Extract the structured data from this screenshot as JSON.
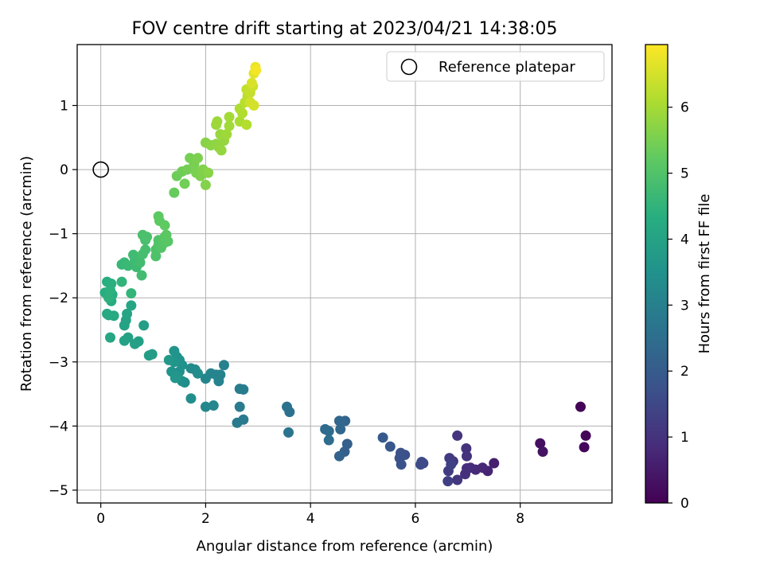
{
  "chart_data": {
    "type": "scatter",
    "title": "FOV centre drift starting at 2023/04/21 14:38:05",
    "xlabel": "Angular distance from reference (arcmin)",
    "ylabel": "Rotation from reference (arcmin)",
    "xlim": [
      -0.45,
      9.75
    ],
    "ylim": [
      -5.2,
      1.95
    ],
    "xticks": [
      0,
      2,
      4,
      6,
      8
    ],
    "yticks": [
      -5,
      -4,
      -3,
      -2,
      -1,
      0,
      1
    ],
    "grid": true,
    "legend": {
      "label": "Reference platepar",
      "placement": "top-right"
    },
    "reference_point": {
      "x": 0,
      "y": 0
    },
    "colorbar": {
      "label": "Hours from first FF file",
      "range": [
        0,
        6.95
      ],
      "ticks": [
        0,
        1,
        2,
        3,
        4,
        5,
        6
      ],
      "colormap": "viridis"
    },
    "points": [
      {
        "x": 9.15,
        "y": -3.7,
        "h": 0.05
      },
      {
        "x": 9.25,
        "y": -4.15,
        "h": 0.1
      },
      {
        "x": 9.22,
        "y": -4.33,
        "h": 0.15
      },
      {
        "x": 8.38,
        "y": -4.27,
        "h": 0.3
      },
      {
        "x": 8.43,
        "y": -4.4,
        "h": 0.35
      },
      {
        "x": 7.5,
        "y": -4.58,
        "h": 0.6
      },
      {
        "x": 7.38,
        "y": -4.7,
        "h": 0.7
      },
      {
        "x": 7.28,
        "y": -4.65,
        "h": 0.75
      },
      {
        "x": 7.15,
        "y": -4.68,
        "h": 0.8
      },
      {
        "x": 7.05,
        "y": -4.65,
        "h": 0.85
      },
      {
        "x": 6.98,
        "y": -4.66,
        "h": 0.9
      },
      {
        "x": 6.95,
        "y": -4.75,
        "h": 0.95
      },
      {
        "x": 6.97,
        "y": -4.35,
        "h": 1.0
      },
      {
        "x": 6.98,
        "y": -4.47,
        "h": 1.02
      },
      {
        "x": 6.8,
        "y": -4.15,
        "h": 1.05
      },
      {
        "x": 6.8,
        "y": -4.84,
        "h": 1.1
      },
      {
        "x": 6.72,
        "y": -4.55,
        "h": 1.15
      },
      {
        "x": 6.65,
        "y": -4.5,
        "h": 1.2
      },
      {
        "x": 6.63,
        "y": -4.7,
        "h": 1.25
      },
      {
        "x": 6.62,
        "y": -4.86,
        "h": 1.3
      },
      {
        "x": 6.68,
        "y": -4.6,
        "h": 1.35
      },
      {
        "x": 6.15,
        "y": -4.58,
        "h": 1.5
      },
      {
        "x": 6.12,
        "y": -4.56,
        "h": 1.55
      },
      {
        "x": 6.1,
        "y": -4.6,
        "h": 1.6
      },
      {
        "x": 5.8,
        "y": -4.45,
        "h": 1.7
      },
      {
        "x": 5.72,
        "y": -4.42,
        "h": 1.75
      },
      {
        "x": 5.7,
        "y": -4.5,
        "h": 1.78
      },
      {
        "x": 5.73,
        "y": -4.6,
        "h": 1.8
      },
      {
        "x": 5.52,
        "y": -4.32,
        "h": 1.9
      },
      {
        "x": 5.38,
        "y": -4.18,
        "h": 1.95
      },
      {
        "x": 4.7,
        "y": -4.28,
        "h": 2.1
      },
      {
        "x": 4.65,
        "y": -4.4,
        "h": 2.15
      },
      {
        "x": 4.55,
        "y": -4.47,
        "h": 2.2
      },
      {
        "x": 4.66,
        "y": -3.92,
        "h": 2.25
      },
      {
        "x": 4.55,
        "y": -3.92,
        "h": 2.3
      },
      {
        "x": 4.57,
        "y": -4.05,
        "h": 2.32
      },
      {
        "x": 4.35,
        "y": -4.08,
        "h": 2.4
      },
      {
        "x": 4.28,
        "y": -4.05,
        "h": 2.42
      },
      {
        "x": 4.35,
        "y": -4.22,
        "h": 2.45
      },
      {
        "x": 3.55,
        "y": -3.7,
        "h": 2.6
      },
      {
        "x": 3.6,
        "y": -3.78,
        "h": 2.62
      },
      {
        "x": 3.58,
        "y": -4.1,
        "h": 2.65
      },
      {
        "x": 2.72,
        "y": -3.9,
        "h": 2.8
      },
      {
        "x": 2.6,
        "y": -3.95,
        "h": 2.82
      },
      {
        "x": 2.65,
        "y": -3.7,
        "h": 2.85
      },
      {
        "x": 2.65,
        "y": -3.42,
        "h": 2.9
      },
      {
        "x": 2.72,
        "y": -3.43,
        "h": 2.92
      },
      {
        "x": 2.35,
        "y": -3.05,
        "h": 3.0
      },
      {
        "x": 2.25,
        "y": -3.3,
        "h": 3.05
      },
      {
        "x": 2.28,
        "y": -3.2,
        "h": 3.08
      },
      {
        "x": 2.1,
        "y": -3.18,
        "h": 3.1
      },
      {
        "x": 2.2,
        "y": -3.2,
        "h": 3.12
      },
      {
        "x": 2.0,
        "y": -3.26,
        "h": 3.15
      },
      {
        "x": 2.15,
        "y": -3.68,
        "h": 3.18
      },
      {
        "x": 2.0,
        "y": -3.7,
        "h": 3.2
      },
      {
        "x": 1.72,
        "y": -3.1,
        "h": 3.3
      },
      {
        "x": 1.8,
        "y": -3.12,
        "h": 3.32
      },
      {
        "x": 1.85,
        "y": -3.18,
        "h": 3.35
      },
      {
        "x": 1.72,
        "y": -3.57,
        "h": 3.38
      },
      {
        "x": 1.6,
        "y": -3.32,
        "h": 3.4
      },
      {
        "x": 1.55,
        "y": -3.3,
        "h": 3.42
      },
      {
        "x": 1.5,
        "y": -3.15,
        "h": 3.45
      },
      {
        "x": 1.55,
        "y": -3.05,
        "h": 3.48
      },
      {
        "x": 1.5,
        "y": -2.97,
        "h": 3.5
      },
      {
        "x": 1.45,
        "y": -2.92,
        "h": 3.52
      },
      {
        "x": 1.4,
        "y": -2.83,
        "h": 3.55
      },
      {
        "x": 1.4,
        "y": -3.0,
        "h": 3.58
      },
      {
        "x": 1.35,
        "y": -3.15,
        "h": 3.6
      },
      {
        "x": 1.45,
        "y": -3.22,
        "h": 3.62
      },
      {
        "x": 1.42,
        "y": -3.25,
        "h": 3.65
      },
      {
        "x": 1.3,
        "y": -2.97,
        "h": 3.68
      },
      {
        "x": 0.98,
        "y": -2.88,
        "h": 3.8
      },
      {
        "x": 0.92,
        "y": -2.9,
        "h": 3.82
      },
      {
        "x": 0.82,
        "y": -2.43,
        "h": 3.85
      },
      {
        "x": 0.72,
        "y": -2.68,
        "h": 3.9
      },
      {
        "x": 0.65,
        "y": -2.72,
        "h": 3.92
      },
      {
        "x": 0.52,
        "y": -2.62,
        "h": 3.95
      },
      {
        "x": 0.45,
        "y": -2.67,
        "h": 3.98
      },
      {
        "x": 0.45,
        "y": -2.43,
        "h": 4.0
      },
      {
        "x": 0.48,
        "y": -2.35,
        "h": 4.02
      },
      {
        "x": 0.5,
        "y": -2.25,
        "h": 4.05
      },
      {
        "x": 0.58,
        "y": -2.12,
        "h": 4.08
      },
      {
        "x": 0.18,
        "y": -2.62,
        "h": 4.1
      },
      {
        "x": 0.15,
        "y": -2.27,
        "h": 4.15
      },
      {
        "x": 0.12,
        "y": -2.25,
        "h": 4.18
      },
      {
        "x": 0.25,
        "y": -2.28,
        "h": 4.2
      },
      {
        "x": 0.2,
        "y": -2.05,
        "h": 4.25
      },
      {
        "x": 0.22,
        "y": -1.95,
        "h": 4.28
      },
      {
        "x": 0.08,
        "y": -1.92,
        "h": 4.3
      },
      {
        "x": 0.12,
        "y": -1.75,
        "h": 4.35
      },
      {
        "x": 0.2,
        "y": -1.78,
        "h": 4.38
      },
      {
        "x": 0.18,
        "y": -1.88,
        "h": 4.4
      },
      {
        "x": 0.15,
        "y": -2.0,
        "h": 4.42
      },
      {
        "x": 0.4,
        "y": -1.75,
        "h": 4.5
      },
      {
        "x": 0.58,
        "y": -1.93,
        "h": 4.55
      },
      {
        "x": 0.4,
        "y": -1.48,
        "h": 4.6
      },
      {
        "x": 0.45,
        "y": -1.45,
        "h": 4.62
      },
      {
        "x": 0.52,
        "y": -1.5,
        "h": 4.65
      },
      {
        "x": 0.68,
        "y": -1.52,
        "h": 4.7
      },
      {
        "x": 0.65,
        "y": -1.42,
        "h": 4.72
      },
      {
        "x": 0.62,
        "y": -1.33,
        "h": 4.75
      },
      {
        "x": 0.78,
        "y": -1.65,
        "h": 4.78
      },
      {
        "x": 0.75,
        "y": -1.45,
        "h": 4.8
      },
      {
        "x": 0.8,
        "y": -1.32,
        "h": 4.82
      },
      {
        "x": 0.85,
        "y": -1.25,
        "h": 4.85
      },
      {
        "x": 0.85,
        "y": -1.1,
        "h": 4.88
      },
      {
        "x": 0.8,
        "y": -1.02,
        "h": 4.9
      },
      {
        "x": 0.88,
        "y": -1.05,
        "h": 4.92
      },
      {
        "x": 1.05,
        "y": -1.35,
        "h": 4.95
      },
      {
        "x": 1.05,
        "y": -1.25,
        "h": 4.97
      },
      {
        "x": 1.1,
        "y": -1.18,
        "h": 5.0
      },
      {
        "x": 1.1,
        "y": -1.1,
        "h": 5.02
      },
      {
        "x": 1.15,
        "y": -1.22,
        "h": 5.05
      },
      {
        "x": 1.2,
        "y": -1.15,
        "h": 5.08
      },
      {
        "x": 1.22,
        "y": -1.05,
        "h": 5.1
      },
      {
        "x": 1.28,
        "y": -1.12,
        "h": 5.12
      },
      {
        "x": 1.25,
        "y": -1.02,
        "h": 5.15
      },
      {
        "x": 1.1,
        "y": -0.73,
        "h": 5.18
      },
      {
        "x": 1.12,
        "y": -0.8,
        "h": 5.2
      },
      {
        "x": 1.22,
        "y": -0.87,
        "h": 5.22
      },
      {
        "x": 1.4,
        "y": -0.36,
        "h": 5.3
      },
      {
        "x": 1.45,
        "y": -0.1,
        "h": 5.35
      },
      {
        "x": 1.55,
        "y": -0.03,
        "h": 5.4
      },
      {
        "x": 1.6,
        "y": -0.22,
        "h": 5.42
      },
      {
        "x": 1.65,
        "y": 0.0,
        "h": 5.45
      },
      {
        "x": 1.7,
        "y": 0.18,
        "h": 5.48
      },
      {
        "x": 1.78,
        "y": 0.08,
        "h": 5.5
      },
      {
        "x": 1.82,
        "y": -0.05,
        "h": 5.52
      },
      {
        "x": 1.85,
        "y": 0.18,
        "h": 5.55
      },
      {
        "x": 1.9,
        "y": -0.1,
        "h": 5.58
      },
      {
        "x": 1.95,
        "y": 0.0,
        "h": 5.6
      },
      {
        "x": 2.0,
        "y": -0.24,
        "h": 5.62
      },
      {
        "x": 2.0,
        "y": 0.42,
        "h": 5.65
      },
      {
        "x": 2.05,
        "y": -0.05,
        "h": 5.68
      },
      {
        "x": 2.1,
        "y": 0.38,
        "h": 5.7
      },
      {
        "x": 2.2,
        "y": 0.4,
        "h": 5.75
      },
      {
        "x": 2.25,
        "y": 0.35,
        "h": 5.78
      },
      {
        "x": 2.3,
        "y": 0.3,
        "h": 5.8
      },
      {
        "x": 2.35,
        "y": 0.45,
        "h": 5.82
      },
      {
        "x": 2.28,
        "y": 0.55,
        "h": 5.85
      },
      {
        "x": 2.2,
        "y": 0.7,
        "h": 5.88
      },
      {
        "x": 2.22,
        "y": 0.75,
        "h": 5.9
      },
      {
        "x": 2.4,
        "y": 0.55,
        "h": 5.92
      },
      {
        "x": 2.45,
        "y": 0.68,
        "h": 5.95
      },
      {
        "x": 2.45,
        "y": 0.82,
        "h": 5.98
      },
      {
        "x": 2.65,
        "y": 0.75,
        "h": 6.05
      },
      {
        "x": 2.65,
        "y": 0.95,
        "h": 6.1
      },
      {
        "x": 2.7,
        "y": 0.88,
        "h": 6.12
      },
      {
        "x": 2.78,
        "y": 0.7,
        "h": 6.15
      },
      {
        "x": 2.75,
        "y": 1.05,
        "h": 6.2
      },
      {
        "x": 2.8,
        "y": 1.15,
        "h": 6.25
      },
      {
        "x": 2.78,
        "y": 1.25,
        "h": 6.3
      },
      {
        "x": 2.85,
        "y": 1.2,
        "h": 6.35
      },
      {
        "x": 2.9,
        "y": 1.3,
        "h": 6.4
      },
      {
        "x": 2.85,
        "y": 1.05,
        "h": 6.45
      },
      {
        "x": 2.92,
        "y": 1.0,
        "h": 6.5
      },
      {
        "x": 2.88,
        "y": 1.35,
        "h": 6.55
      },
      {
        "x": 2.92,
        "y": 1.5,
        "h": 6.65
      },
      {
        "x": 2.95,
        "y": 1.6,
        "h": 6.75
      },
      {
        "x": 2.96,
        "y": 1.55,
        "h": 6.85
      }
    ]
  }
}
